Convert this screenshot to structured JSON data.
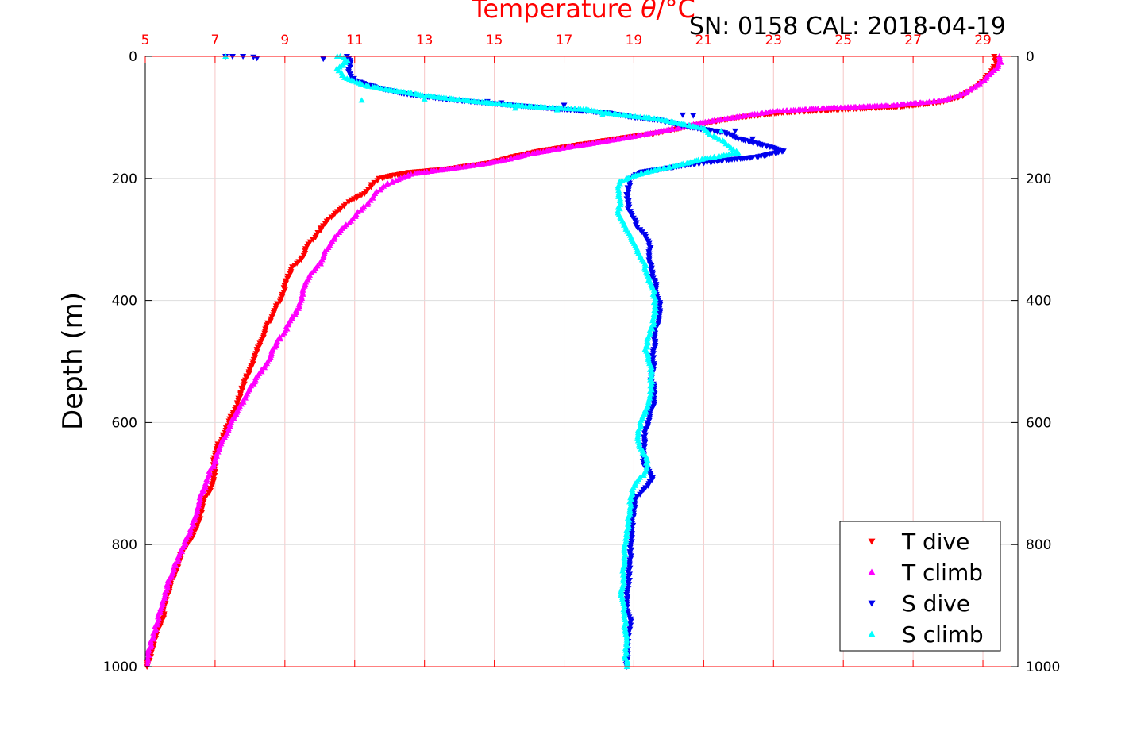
{
  "chart_data": {
    "type": "scatter",
    "title_prefix": "Temperature ",
    "title_theta": "θ",
    "title_suffix": "/°C",
    "subtitle": "SN: 0158  CAL: 2018-04-19",
    "ylabel": "Depth (m)",
    "xlim": [
      5,
      30
    ],
    "ylim": [
      0,
      1000
    ],
    "y_reversed": true,
    "x_ticks": [
      5,
      7,
      9,
      11,
      13,
      15,
      17,
      19,
      21,
      23,
      25,
      27,
      29
    ],
    "y_ticks": [
      0,
      200,
      400,
      600,
      800,
      1000
    ],
    "grid": true,
    "legend_position": "bottom-right",
    "series": [
      {
        "name": "T dive",
        "color": "#ff0000",
        "marker": "triangle-down",
        "profile": [
          [
            29.3,
            0
          ],
          [
            29.4,
            10
          ],
          [
            29.3,
            20
          ],
          [
            29.1,
            35
          ],
          [
            28.8,
            50
          ],
          [
            28.4,
            65
          ],
          [
            27.8,
            75
          ],
          [
            26.7,
            82
          ],
          [
            25.0,
            87
          ],
          [
            23.3,
            92
          ],
          [
            22.0,
            100
          ],
          [
            20.8,
            112
          ],
          [
            19.7,
            125
          ],
          [
            18.5,
            135
          ],
          [
            17.4,
            145
          ],
          [
            16.3,
            155
          ],
          [
            15.5,
            165
          ],
          [
            14.8,
            175
          ],
          [
            13.6,
            185
          ],
          [
            12.6,
            190
          ],
          [
            12.1,
            195
          ],
          [
            11.7,
            200
          ],
          [
            11.5,
            210
          ],
          [
            11.3,
            225
          ],
          [
            10.9,
            235
          ],
          [
            10.7,
            245
          ],
          [
            10.4,
            260
          ],
          [
            10.2,
            270
          ],
          [
            10.0,
            285
          ],
          [
            9.8,
            300
          ],
          [
            9.6,
            315
          ],
          [
            9.5,
            330
          ],
          [
            9.2,
            345
          ],
          [
            9.1,
            360
          ],
          [
            9.0,
            375
          ],
          [
            8.95,
            390
          ],
          [
            8.8,
            405
          ],
          [
            8.7,
            420
          ],
          [
            8.5,
            440
          ],
          [
            8.4,
            460
          ],
          [
            8.2,
            480
          ],
          [
            8.1,
            500
          ],
          [
            7.95,
            520
          ],
          [
            7.8,
            540
          ],
          [
            7.7,
            560
          ],
          [
            7.6,
            575
          ],
          [
            7.45,
            590
          ],
          [
            7.35,
            605
          ],
          [
            7.25,
            620
          ],
          [
            7.1,
            635
          ],
          [
            7.0,
            650
          ],
          [
            6.95,
            665
          ],
          [
            7.0,
            680
          ],
          [
            6.95,
            700
          ],
          [
            6.8,
            715
          ],
          [
            6.65,
            730
          ],
          [
            6.6,
            750
          ],
          [
            6.5,
            765
          ],
          [
            6.35,
            785
          ],
          [
            6.2,
            800
          ],
          [
            6.0,
            820
          ],
          [
            5.9,
            840
          ],
          [
            5.75,
            860
          ],
          [
            5.65,
            880
          ],
          [
            5.55,
            900
          ],
          [
            5.5,
            920
          ],
          [
            5.35,
            940
          ],
          [
            5.25,
            960
          ],
          [
            5.15,
            980
          ],
          [
            5.05,
            1000
          ]
        ],
        "extra": []
      },
      {
        "name": "T climb",
        "color": "#ff00ff",
        "marker": "triangle-up",
        "profile": [
          [
            29.5,
            0
          ],
          [
            29.5,
            10
          ],
          [
            29.4,
            20
          ],
          [
            29.2,
            30
          ],
          [
            28.9,
            45
          ],
          [
            28.5,
            60
          ],
          [
            27.9,
            72
          ],
          [
            26.5,
            80
          ],
          [
            24.5,
            85
          ],
          [
            23.0,
            90
          ],
          [
            22.1,
            98
          ],
          [
            21.0,
            108
          ],
          [
            20.2,
            118
          ],
          [
            19.3,
            128
          ],
          [
            18.1,
            140
          ],
          [
            17.0,
            150
          ],
          [
            16.0,
            160
          ],
          [
            15.3,
            170
          ],
          [
            14.5,
            178
          ],
          [
            13.5,
            186
          ],
          [
            12.7,
            192
          ],
          [
            12.3,
            200
          ],
          [
            11.9,
            210
          ],
          [
            11.6,
            225
          ],
          [
            11.4,
            240
          ],
          [
            11.1,
            255
          ],
          [
            10.9,
            270
          ],
          [
            10.6,
            285
          ],
          [
            10.4,
            300
          ],
          [
            10.15,
            320
          ],
          [
            10.0,
            340
          ],
          [
            9.75,
            355
          ],
          [
            9.6,
            370
          ],
          [
            9.5,
            390
          ],
          [
            9.4,
            410
          ],
          [
            9.2,
            430
          ],
          [
            9.0,
            450
          ],
          [
            8.75,
            470
          ],
          [
            8.6,
            490
          ],
          [
            8.4,
            510
          ],
          [
            8.15,
            530
          ],
          [
            7.95,
            550
          ],
          [
            7.75,
            570
          ],
          [
            7.55,
            590
          ],
          [
            7.4,
            610
          ],
          [
            7.25,
            625
          ],
          [
            7.1,
            645
          ],
          [
            7.0,
            665
          ],
          [
            6.85,
            680
          ],
          [
            6.75,
            700
          ],
          [
            6.6,
            720
          ],
          [
            6.5,
            740
          ],
          [
            6.4,
            760
          ],
          [
            6.3,
            775
          ],
          [
            6.15,
            795
          ],
          [
            6.0,
            815
          ],
          [
            5.85,
            835
          ],
          [
            5.7,
            855
          ],
          [
            5.6,
            875
          ],
          [
            5.5,
            895
          ],
          [
            5.4,
            915
          ],
          [
            5.3,
            935
          ],
          [
            5.2,
            955
          ],
          [
            5.1,
            975
          ],
          [
            5.05,
            995
          ]
        ],
        "extra": []
      },
      {
        "name": "S dive",
        "color": "#0000ee",
        "marker": "triangle-down",
        "profile": [
          [
            10.8,
            0
          ],
          [
            10.9,
            10
          ],
          [
            10.8,
            25
          ],
          [
            11.0,
            40
          ],
          [
            11.7,
            52
          ],
          [
            12.5,
            62
          ],
          [
            13.6,
            70
          ],
          [
            14.5,
            75
          ],
          [
            15.5,
            80
          ],
          [
            16.8,
            86
          ],
          [
            18.3,
            93
          ],
          [
            19.0,
            100
          ],
          [
            19.8,
            105
          ],
          [
            20.5,
            115
          ],
          [
            21.6,
            125
          ],
          [
            22.0,
            135
          ],
          [
            22.7,
            145
          ],
          [
            23.3,
            155
          ],
          [
            22.5,
            165
          ],
          [
            21.3,
            172
          ],
          [
            20.3,
            180
          ],
          [
            19.2,
            190
          ],
          [
            18.9,
            200
          ],
          [
            18.85,
            215
          ],
          [
            18.8,
            230
          ],
          [
            18.85,
            250
          ],
          [
            19.0,
            265
          ],
          [
            19.1,
            280
          ],
          [
            19.35,
            295
          ],
          [
            19.45,
            310
          ],
          [
            19.45,
            330
          ],
          [
            19.5,
            350
          ],
          [
            19.6,
            370
          ],
          [
            19.65,
            390
          ],
          [
            19.75,
            410
          ],
          [
            19.7,
            430
          ],
          [
            19.6,
            450
          ],
          [
            19.6,
            470
          ],
          [
            19.55,
            490
          ],
          [
            19.55,
            510
          ],
          [
            19.5,
            530
          ],
          [
            19.6,
            550
          ],
          [
            19.55,
            570
          ],
          [
            19.45,
            590
          ],
          [
            19.35,
            610
          ],
          [
            19.3,
            630
          ],
          [
            19.25,
            650
          ],
          [
            19.3,
            670
          ],
          [
            19.55,
            690
          ],
          [
            19.3,
            710
          ],
          [
            19.05,
            725
          ],
          [
            19.0,
            745
          ],
          [
            18.95,
            765
          ],
          [
            18.95,
            785
          ],
          [
            18.9,
            805
          ],
          [
            18.9,
            825
          ],
          [
            18.85,
            845
          ],
          [
            18.85,
            865
          ],
          [
            18.8,
            885
          ],
          [
            18.8,
            905
          ],
          [
            18.9,
            925
          ],
          [
            18.85,
            945
          ],
          [
            18.8,
            965
          ],
          [
            18.8,
            985
          ],
          [
            18.8,
            1000
          ]
        ],
        "extra": [
          [
            7.3,
            0
          ],
          [
            7.5,
            0
          ],
          [
            7.8,
            0
          ],
          [
            8.1,
            1
          ],
          [
            8.2,
            3
          ],
          [
            10.1,
            4
          ],
          [
            14.8,
            74
          ],
          [
            15.2,
            76
          ],
          [
            17.0,
            80
          ],
          [
            20.4,
            96
          ],
          [
            20.7,
            97
          ],
          [
            21.9,
            122
          ],
          [
            22.4,
            135
          ]
        ]
      },
      {
        "name": "S climb",
        "color": "#00ffff",
        "marker": "triangle-up",
        "profile": [
          [
            10.6,
            0
          ],
          [
            10.8,
            8
          ],
          [
            10.5,
            20
          ],
          [
            10.7,
            35
          ],
          [
            11.3,
            48
          ],
          [
            12.0,
            55
          ],
          [
            13.1,
            65
          ],
          [
            14.3,
            73
          ],
          [
            15.5,
            80
          ],
          [
            16.5,
            84
          ],
          [
            17.6,
            87
          ],
          [
            18.1,
            92
          ],
          [
            18.8,
            97
          ],
          [
            19.6,
            102
          ],
          [
            20.3,
            110
          ],
          [
            21.0,
            118
          ],
          [
            21.2,
            128
          ],
          [
            21.6,
            140
          ],
          [
            21.8,
            150
          ],
          [
            22.0,
            158
          ],
          [
            21.0,
            168
          ],
          [
            20.3,
            178
          ],
          [
            19.5,
            188
          ],
          [
            19.0,
            196
          ],
          [
            18.6,
            205
          ],
          [
            18.55,
            220
          ],
          [
            18.6,
            240
          ],
          [
            18.55,
            260
          ],
          [
            18.75,
            280
          ],
          [
            18.95,
            300
          ],
          [
            19.1,
            320
          ],
          [
            19.3,
            340
          ],
          [
            19.4,
            360
          ],
          [
            19.55,
            380
          ],
          [
            19.6,
            400
          ],
          [
            19.6,
            420
          ],
          [
            19.55,
            440
          ],
          [
            19.4,
            460
          ],
          [
            19.35,
            480
          ],
          [
            19.45,
            500
          ],
          [
            19.5,
            520
          ],
          [
            19.5,
            540
          ],
          [
            19.45,
            560
          ],
          [
            19.35,
            580
          ],
          [
            19.2,
            600
          ],
          [
            19.1,
            620
          ],
          [
            19.15,
            640
          ],
          [
            19.4,
            660
          ],
          [
            19.35,
            680
          ],
          [
            19.05,
            700
          ],
          [
            18.9,
            720
          ],
          [
            18.9,
            740
          ],
          [
            18.85,
            760
          ],
          [
            18.8,
            780
          ],
          [
            18.75,
            800
          ],
          [
            18.75,
            820
          ],
          [
            18.7,
            840
          ],
          [
            18.7,
            860
          ],
          [
            18.65,
            880
          ],
          [
            18.7,
            900
          ],
          [
            18.75,
            920
          ],
          [
            18.75,
            940
          ],
          [
            18.8,
            960
          ],
          [
            18.75,
            980
          ],
          [
            18.8,
            1000
          ]
        ],
        "extra": [
          [
            7.3,
            0
          ],
          [
            10.5,
            0
          ],
          [
            11.2,
            72
          ],
          [
            13.0,
            70
          ],
          [
            15.6,
            85
          ],
          [
            16.8,
            88
          ],
          [
            18.1,
            96
          ],
          [
            21.5,
            122
          ]
        ]
      }
    ]
  }
}
